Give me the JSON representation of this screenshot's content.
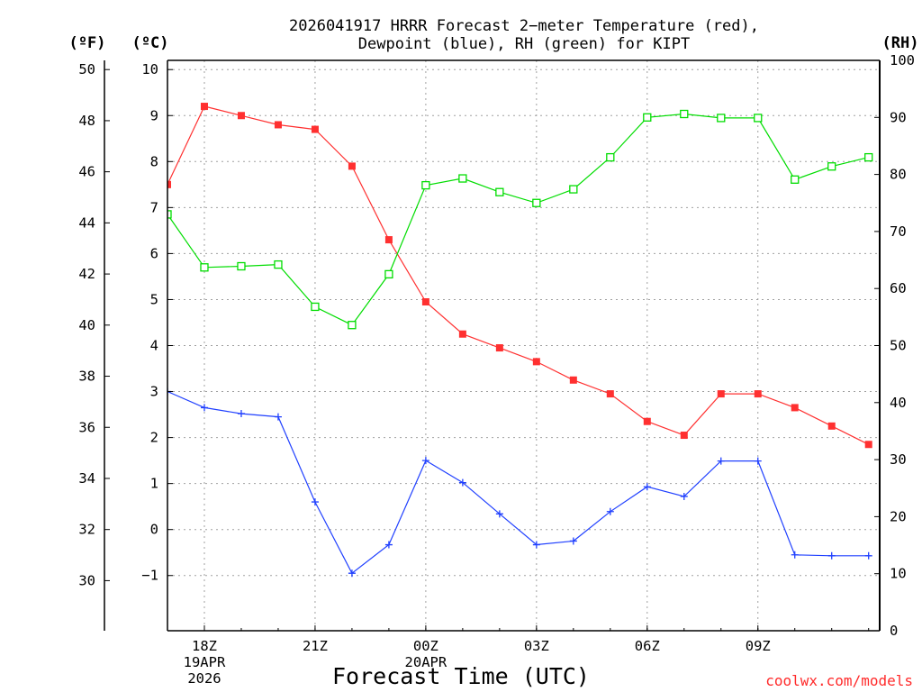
{
  "chart_data": {
    "type": "line",
    "title_lines": [
      "2026041917 HRRR Forecast 2−meter Temperature (red),",
      "Dewpoint (blue), RH (green) for KIPT"
    ],
    "xlabel": "Forecast Time (UTC)",
    "credit": "coolwx.com/models",
    "units": {
      "fahrenheit": "(ºF)",
      "celsius": "(ºC)",
      "rh": "(RH)"
    },
    "x_hours": [
      0,
      1,
      2,
      3,
      4,
      5,
      6,
      7,
      8,
      9,
      10,
      11,
      12,
      13,
      14,
      15,
      16,
      17,
      18,
      19
    ],
    "xlim": [
      0,
      19.3
    ],
    "x_ticks": [
      {
        "hour": 1,
        "lines": [
          "18Z",
          "19APR",
          "2026"
        ]
      },
      {
        "hour": 4,
        "lines": [
          "21Z"
        ]
      },
      {
        "hour": 7,
        "lines": [
          "00Z",
          "20APR"
        ]
      },
      {
        "hour": 10,
        "lines": [
          "03Z"
        ]
      },
      {
        "hour": 13,
        "lines": [
          "06Z"
        ]
      },
      {
        "hour": 16,
        "lines": [
          "09Z"
        ]
      }
    ],
    "celsius_axis": {
      "ylim": [
        -2.2,
        10.2
      ],
      "ticks": [
        -1,
        0,
        1,
        2,
        3,
        4,
        5,
        6,
        7,
        8,
        9,
        10
      ],
      "tick_labels": [
        "−1",
        "0",
        "1",
        "2",
        "3",
        "4",
        "5",
        "6",
        "7",
        "8",
        "9",
        "10"
      ]
    },
    "fahrenheit_axis": {
      "ticks": [
        30,
        32,
        34,
        36,
        38,
        40,
        42,
        44,
        46,
        48,
        50
      ],
      "tick_labels": [
        "30",
        "32",
        "34",
        "36",
        "38",
        "40",
        "42",
        "44",
        "46",
        "48",
        "50"
      ]
    },
    "rh_axis": {
      "ylim": [
        0,
        100
      ],
      "ticks": [
        0,
        10,
        20,
        30,
        40,
        50,
        60,
        70,
        80,
        90,
        100
      ],
      "tick_labels": [
        "0",
        "10",
        "20",
        "30",
        "40",
        "50",
        "60",
        "70",
        "80",
        "90",
        "100"
      ]
    },
    "series": [
      {
        "name": "Temperature",
        "axis": "celsius",
        "color": "#ff3030",
        "marker": "filled-square",
        "values": [
          7.5,
          9.2,
          9.0,
          8.8,
          8.7,
          7.9,
          6.3,
          4.95,
          4.25,
          3.95,
          3.65,
          3.25,
          2.95,
          2.35,
          2.05,
          2.95,
          2.95,
          2.65,
          2.25,
          1.85
        ]
      },
      {
        "name": "Dewpoint",
        "axis": "celsius",
        "color": "#2040ff",
        "marker": "plus",
        "values": [
          3.0,
          2.65,
          2.52,
          2.45,
          0.6,
          -0.95,
          -0.33,
          1.5,
          1.02,
          0.34,
          -0.33,
          -0.25,
          0.39,
          0.93,
          0.72,
          1.49,
          1.49,
          -0.55,
          -0.57,
          -0.57
        ]
      },
      {
        "name": "RH",
        "axis": "rh",
        "color": "#00dd00",
        "marker": "open-square",
        "values": [
          73,
          63.7,
          63.9,
          64.2,
          56.8,
          53.6,
          62.5,
          78.1,
          79.3,
          76.9,
          75,
          77.4,
          83,
          90,
          90.6,
          89.9,
          89.9,
          79.1,
          81.4,
          83.0
        ]
      }
    ],
    "grid": "dotted"
  }
}
